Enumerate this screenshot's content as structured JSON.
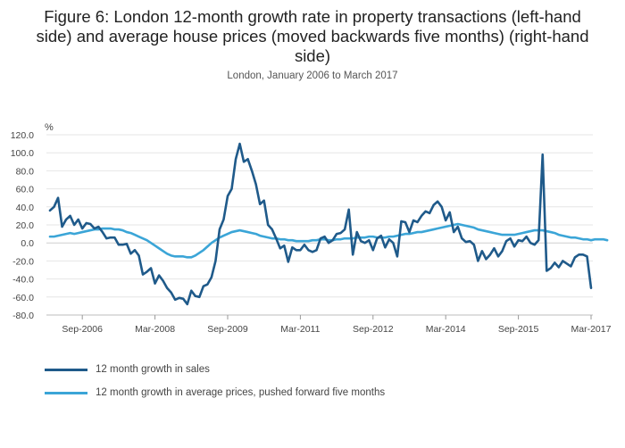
{
  "title_lines": [
    "Figure 6: London 12-month growth rate in property transactions (left-hand",
    "side) and average house prices (moved backwards five months) (right-hand",
    "side)"
  ],
  "chart_data": {
    "type": "line",
    "title": "Figure 6: London 12-month growth rate in property transactions (left-hand side) and average house prices (moved backwards five months) (right-hand side)",
    "subtitle": "London, January 2006 to March 2017",
    "ylabel": "%",
    "ylim": [
      -80,
      120
    ],
    "yticks": [
      120,
      100,
      80,
      60,
      40,
      20,
      0,
      -20,
      -40,
      -60,
      -80
    ],
    "ytick_labels": [
      "120.0",
      "100.0",
      "80.0",
      "60.0",
      "40.0",
      "20.0",
      "0.0",
      "-20.0",
      "-40.0",
      "-60.0",
      "-80.0"
    ],
    "x_start": "Jan-2006",
    "x_end": "Mar-2017",
    "xticks": [
      {
        "label": "Sep-2006",
        "index": 8
      },
      {
        "label": "Mar-2008",
        "index": 26
      },
      {
        "label": "Sep-2009",
        "index": 44
      },
      {
        "label": "Mar-2011",
        "index": 62
      },
      {
        "label": "Sep-2012",
        "index": 80
      },
      {
        "label": "Mar-2014",
        "index": 98
      },
      {
        "label": "Sep-2015",
        "index": 116
      },
      {
        "label": "Mar-2017",
        "index": 134
      }
    ],
    "grid": true,
    "legend_position": "bottom-left",
    "series": [
      {
        "name": "12 month growth in sales",
        "color": "#1f5a8a",
        "values": [
          36,
          40,
          50,
          18,
          26,
          30,
          20,
          26,
          16,
          22,
          21,
          16,
          18,
          12,
          5,
          6,
          6,
          -2,
          -2,
          -1,
          -12,
          -8,
          -14,
          -35,
          -32,
          -28,
          -45,
          -36,
          -42,
          -50,
          -55,
          -63,
          -61,
          -62,
          -68,
          -53,
          -59,
          -60,
          -48,
          -46,
          -38,
          -20,
          15,
          26,
          52,
          60,
          93,
          110,
          90,
          93,
          80,
          65,
          43,
          47,
          20,
          15,
          5,
          -6,
          -3,
          -21,
          -5,
          -8,
          -8,
          -2,
          -8,
          -10,
          -8,
          5,
          7,
          0,
          3,
          10,
          11,
          15,
          37,
          -13,
          12,
          2,
          0,
          3,
          -8,
          5,
          8,
          -5,
          4,
          0,
          -15,
          24,
          23,
          12,
          25,
          23,
          30,
          35,
          33,
          42,
          46,
          40,
          25,
          34,
          12,
          18,
          5,
          1,
          2,
          -2,
          -20,
          -9,
          -18,
          -13,
          -6,
          -15,
          -9,
          2,
          5,
          -4,
          3,
          2,
          7,
          0,
          -2,
          3,
          98,
          -31,
          -28,
          -22,
          -27,
          -20,
          -23,
          -26,
          -16,
          -13,
          -13,
          -15,
          -50
        ],
        "marker": "none"
      },
      {
        "name": "12 month growth in average prices, pushed forward five months",
        "color": "#3ba5d7",
        "values": [
          7,
          7,
          8,
          9,
          10,
          11,
          10,
          11,
          12,
          13,
          14,
          15,
          15,
          16,
          16,
          16,
          15,
          15,
          14,
          12,
          11,
          9,
          7,
          5,
          3,
          0,
          -3,
          -6,
          -9,
          -12,
          -14,
          -15,
          -15,
          -15,
          -16,
          -16,
          -14,
          -11,
          -8,
          -4,
          0,
          3,
          6,
          8,
          10,
          12,
          13,
          14,
          13,
          12,
          11,
          10,
          8,
          7,
          6,
          5,
          5,
          4,
          4,
          3,
          3,
          2,
          2,
          2,
          2,
          3,
          3,
          4,
          4,
          3,
          3,
          4,
          4,
          5,
          5,
          5,
          6,
          6,
          6,
          7,
          7,
          6,
          6,
          6,
          7,
          7,
          8,
          9,
          10,
          10,
          11,
          12,
          12,
          13,
          14,
          15,
          16,
          17,
          18,
          19,
          20,
          21,
          20,
          19,
          18,
          17,
          15,
          14,
          13,
          12,
          11,
          10,
          9,
          9,
          9,
          9,
          10,
          11,
          12,
          13,
          14,
          14,
          14,
          13,
          12,
          11,
          9,
          8,
          7,
          6,
          6,
          5,
          4,
          4,
          3,
          4,
          4,
          4,
          3
        ]
      }
    ]
  }
}
